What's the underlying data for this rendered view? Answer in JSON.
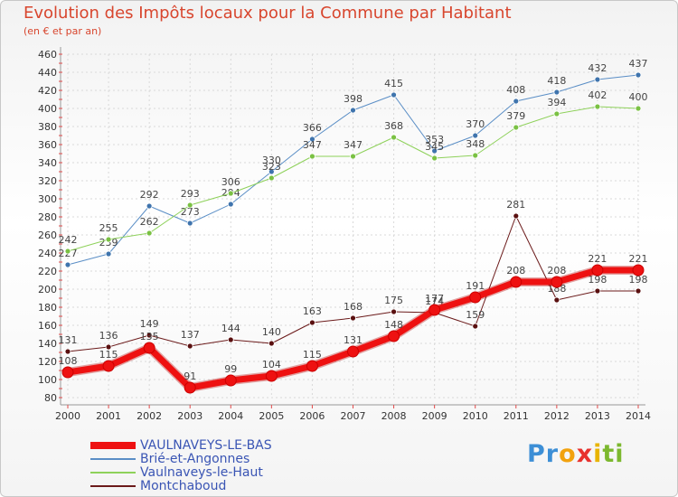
{
  "chart_data": {
    "type": "line",
    "title": "Evolution des Impôts locaux pour la Commune par Habitant",
    "subtitle": "(en € et par an)",
    "xlabel": "",
    "ylabel": "",
    "x": [
      "2000",
      "2001",
      "2002",
      "2003",
      "2004",
      "2005",
      "2006",
      "2007",
      "2008",
      "2009",
      "2010",
      "2011",
      "2012",
      "2013",
      "2014"
    ],
    "ylim": [
      80,
      460
    ],
    "yticks": [
      80,
      100,
      120,
      140,
      160,
      180,
      200,
      220,
      240,
      260,
      280,
      300,
      320,
      340,
      360,
      380,
      400,
      420,
      440,
      460
    ],
    "grid": true,
    "legend_position": "bottom-left",
    "series": [
      {
        "name": "Brié-et-Angonnes",
        "color": "#5a8ec6",
        "marker": "#3f74ad",
        "width": 1,
        "values": [
          227,
          239,
          292,
          273,
          294,
          330,
          366,
          398,
          415,
          353,
          370,
          408,
          418,
          432,
          437
        ],
        "labels": [
          "227",
          "239",
          "292",
          "273",
          "294",
          "330",
          "366",
          "398",
          "415",
          "353",
          "370",
          "408",
          "418",
          "432",
          "437"
        ]
      },
      {
        "name": "Vaulnaveys-le-Haut",
        "color": "#8ed15a",
        "marker": "#7ac143",
        "width": 1,
        "values": [
          242,
          255,
          262,
          293,
          306,
          323,
          347,
          347,
          368,
          345,
          348,
          379,
          394,
          402,
          400
        ],
        "labels": [
          "242",
          "255",
          "262",
          "293",
          "306",
          "323",
          "347",
          "347",
          "368",
          "345",
          "348",
          "379",
          "394",
          "402",
          "400"
        ]
      },
      {
        "name": "Montchaboud",
        "color": "#6b1a1a",
        "marker": "#5a1010",
        "width": 1,
        "values": [
          131,
          136,
          149,
          137,
          144,
          140,
          163,
          168,
          175,
          174,
          159,
          281,
          188,
          198,
          198
        ],
        "labels": [
          "131",
          "136",
          "149",
          "137",
          "144",
          "140",
          "163",
          "168",
          "175",
          "174",
          "159",
          "281",
          "188",
          "198",
          "198"
        ]
      },
      {
        "name": "VAULNAVEYS-LE-BAS",
        "color": "#ee1111",
        "marker": "#ee1111",
        "width": 7,
        "values": [
          108,
          115,
          135,
          91,
          99,
          104,
          115,
          131,
          148,
          177,
          191,
          208,
          208,
          221,
          221
        ],
        "labels": [
          "108",
          "115",
          "135",
          "91",
          "99",
          "104",
          "115",
          "131",
          "148",
          "177",
          "191",
          "208",
          "208",
          "221",
          "221"
        ]
      }
    ]
  },
  "legend": [
    {
      "label": "VAULNAVEYS-LE-BAS",
      "color": "#ee1111",
      "thickness": 8
    },
    {
      "label": "Brié-et-Angonnes",
      "color": "#5a8ec6",
      "thickness": 2
    },
    {
      "label": "Vaulnaveys-le-Haut",
      "color": "#8ed15a",
      "thickness": 2
    },
    {
      "label": "Montchaboud",
      "color": "#6b1a1a",
      "thickness": 2
    }
  ],
  "brand": {
    "letters": [
      "P",
      "r",
      "o",
      "x",
      "i",
      "t",
      "i"
    ],
    "colors": [
      "#3d8fd6",
      "#3d8fd6",
      "#f2a20e",
      "#e8322e",
      "#e8b400",
      "#7cb82f",
      "#7cb82f"
    ]
  }
}
